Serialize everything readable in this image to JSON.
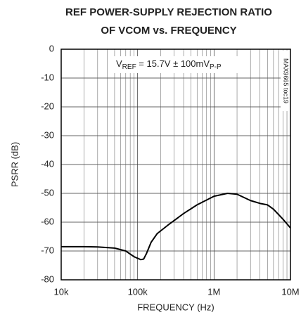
{
  "chart_data": {
    "type": "line",
    "title": [
      "REF POWER-SUPPLY REJECTION RATIO",
      "OF VCOM vs. FREQUENCY"
    ],
    "x_label": "FREQUENCY (Hz)",
    "y_label": "PSRR (dB)",
    "annotation": [
      "V",
      "REF",
      " = 15.7V ± 100mV",
      "P-P"
    ],
    "side_label": "MAX9665 toc19",
    "x_scale": "log",
    "grid": true,
    "xlim": [
      10000,
      10000000
    ],
    "xticks": [
      {
        "value": 10000,
        "label": "10k"
      },
      {
        "value": 100000,
        "label": "100k"
      },
      {
        "value": 1000000,
        "label": "1M"
      },
      {
        "value": 10000000,
        "label": "10M"
      }
    ],
    "ylim": [
      -80,
      0
    ],
    "yticks": [
      0,
      -10,
      -20,
      -30,
      -40,
      -50,
      -60,
      -70,
      -80
    ],
    "series": [
      {
        "name": "PSRR",
        "color": "#000000",
        "x": [
          10000,
          20000,
          30000,
          50000,
          70000,
          90000,
          110000,
          120000,
          130000,
          150000,
          180000,
          250000,
          400000,
          600000,
          1000000,
          1500000,
          2000000,
          3000000,
          4000000,
          5000000,
          6000000,
          8000000,
          10000000
        ],
        "values": [
          -68.5,
          -68.5,
          -68.6,
          -69,
          -70,
          -72,
          -73,
          -72.8,
          -71,
          -67,
          -64,
          -61,
          -57,
          -54,
          -51,
          -50,
          -50.3,
          -52.5,
          -53.5,
          -54,
          -55.5,
          -59,
          -62
        ]
      }
    ]
  }
}
